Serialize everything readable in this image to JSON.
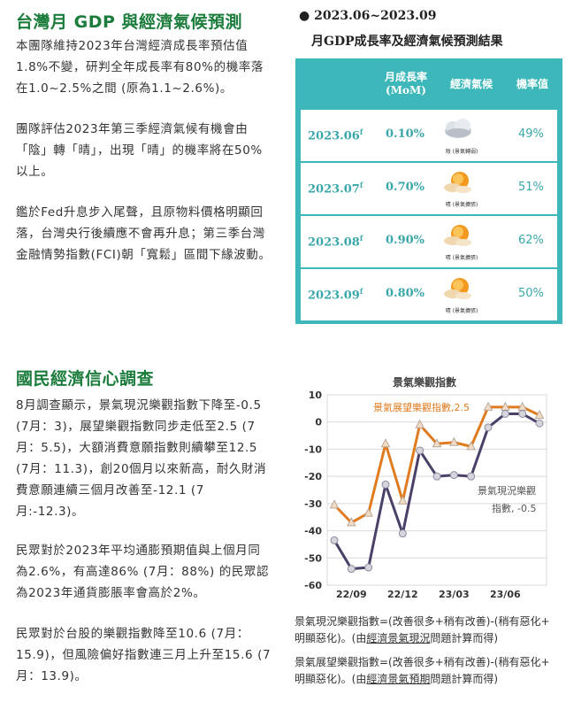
{
  "section1": {
    "title": "台灣月 GDP 與經濟氣候預測",
    "p1": "本團隊維持2023年台灣經濟成長率預估值1.8%不變，研判全年成長率有80%的機率落在1.0~2.5%之間 (原為1.1~2.6%)。",
    "p2": "團隊評估2023年第三季經濟氣候有機會由「陰」轉「晴」，出現「晴」的機率將在50%以上。",
    "p3": "鑑於Fed升息步入尾聲，且原物料價格明顯回落，台灣央行後續應不會再升息；第三季台灣金融情勢指數(FCI)朝「寬鬆」區間下緣波動。"
  },
  "forecast": {
    "title_line1": "● 2023.06~2023.09",
    "title_line2": "月GDP成長率及經濟氣候預測結果",
    "col_growth": "月成長率",
    "col_growth_sub": "(MoM)",
    "col_climate": "經濟氣候",
    "col_prob": "機率值",
    "rows": [
      {
        "month": "2023.06",
        "sup": "f",
        "growth": "0.10%",
        "climate": "陰 (景氣轉弱)",
        "prob": "49%"
      },
      {
        "month": "2023.07",
        "sup": "f",
        "growth": "0.70%",
        "climate": "晴 (景氣擴張)",
        "prob": "51%"
      },
      {
        "month": "2023.08",
        "sup": "f",
        "growth": "0.90%",
        "climate": "晴 (景氣擴張)",
        "prob": "62%"
      },
      {
        "month": "2023.09",
        "sup": "f",
        "growth": "0.80%",
        "climate": "晴 (景氣擴張)",
        "prob": "50%"
      }
    ]
  },
  "section2": {
    "title": "國民經濟信心調查",
    "p1": "8月調查顯示，景氣現況樂觀指數下降至-0.5 (7月：3)，展望樂觀指數同步走低至2.5 (7月：5.5)，大額消費意願指數則續攀至12.5 (7月：11.3)，創20個月以來新高，耐久財消費意願連續三個月改善至-12.1 (7月:-12.3)。",
    "p2": "民眾對於2023年平均通膨預期值與上個月同為2.6%，有高達86% (7月：88%) 的民眾認為2023年通貨膨脹率會高於2%。",
    "p3": "民眾對於台股的樂觀指數降至10.6 (7月：15.9)，但風險偏好指數連三月上升至15.6 (7月：13.9)。"
  },
  "chart_data": {
    "type": "line",
    "title": "景氣樂觀指數",
    "x": [
      "22/08",
      "22/09",
      "22/10",
      "22/11",
      "22/12",
      "23/01",
      "23/02",
      "23/03",
      "23/04",
      "23/05",
      "23/06",
      "23/07",
      "23/08"
    ],
    "xticks": [
      "22/09",
      "22/12",
      "23/03",
      "23/06"
    ],
    "ylim": [
      -60,
      10
    ],
    "yticks": [
      10,
      0,
      -10,
      -20,
      -30,
      -40,
      -50,
      -60
    ],
    "series": [
      {
        "name": "景氣展望樂觀指數,2.5",
        "color": "#e07b1f",
        "values": [
          -30.5,
          -37,
          -33.5,
          -8,
          -29,
          -1,
          -8,
          -7.5,
          -9,
          5.5,
          5.5,
          5.5,
          2.5
        ]
      },
      {
        "name": "景氣現況樂觀指數, -0.5",
        "color": "#4a4068",
        "values": [
          -43.5,
          -54,
          -53.5,
          -23,
          -41,
          -10.5,
          -20,
          -19.5,
          -20,
          -2,
          3,
          3,
          -0.5
        ]
      }
    ],
    "label_outlook": "景氣展望樂觀指數,2.5",
    "label_current_1": "景氣現況樂觀",
    "label_current_2": "指數, -0.5",
    "note1_a": "景氣現況樂觀指數=(改善很多+稍有改善)-(稍有惡化+",
    "note1_b": "明顯惡化)。(由",
    "note1_u": "經濟景氣現況",
    "note1_c": "問題計算而得)",
    "note2_a": "景氣展望樂觀指數=(改善很多+稍有改善)-(稍有惡化+",
    "note2_b": "明顯惡化)。(由",
    "note2_u": "經濟景氣預期",
    "note2_c": "問題計算而得)"
  }
}
